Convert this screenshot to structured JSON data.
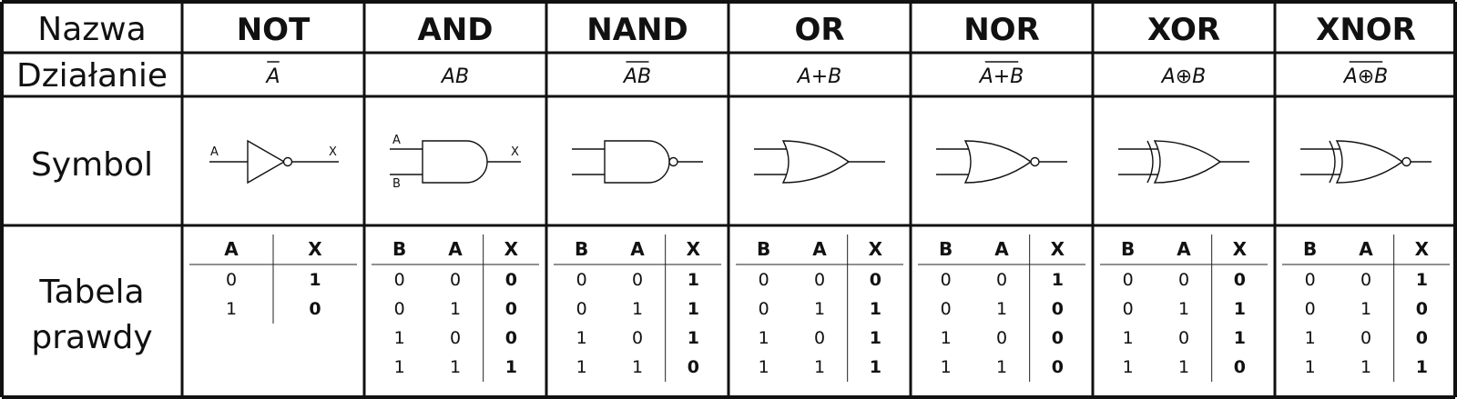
{
  "row_labels": {
    "name": "Nazwa",
    "operation": "Działanie",
    "symbol": "Symbol",
    "truth_table_line1": "Tabela",
    "truth_table_line2": "prawdy"
  },
  "gates": [
    {
      "name": "NOT",
      "operation": "A",
      "operation_overline": true,
      "symbol_icon": "not-gate-icon",
      "pin_labels": {
        "a": "A",
        "x": "X"
      },
      "columns": [
        "A",
        "X"
      ],
      "rows": [
        [
          "0",
          "1"
        ],
        [
          "1",
          "0"
        ]
      ]
    },
    {
      "name": "AND",
      "operation": "AB",
      "operation_overline": false,
      "symbol_icon": "and-gate-icon",
      "pin_labels": {
        "a": "A",
        "b": "B",
        "x": "X"
      },
      "columns": [
        "B",
        "A",
        "X"
      ],
      "rows": [
        [
          "0",
          "0",
          "0"
        ],
        [
          "0",
          "1",
          "0"
        ],
        [
          "1",
          "0",
          "0"
        ],
        [
          "1",
          "1",
          "1"
        ]
      ]
    },
    {
      "name": "NAND",
      "operation": "AB",
      "operation_overline": true,
      "symbol_icon": "nand-gate-icon",
      "columns": [
        "B",
        "A",
        "X"
      ],
      "rows": [
        [
          "0",
          "0",
          "1"
        ],
        [
          "0",
          "1",
          "1"
        ],
        [
          "1",
          "0",
          "1"
        ],
        [
          "1",
          "1",
          "0"
        ]
      ]
    },
    {
      "name": "OR",
      "operation": "A+B",
      "operation_overline": false,
      "symbol_icon": "or-gate-icon",
      "columns": [
        "B",
        "A",
        "X"
      ],
      "rows": [
        [
          "0",
          "0",
          "0"
        ],
        [
          "0",
          "1",
          "1"
        ],
        [
          "1",
          "0",
          "1"
        ],
        [
          "1",
          "1",
          "1"
        ]
      ]
    },
    {
      "name": "NOR",
      "operation": "A+B",
      "operation_overline": true,
      "symbol_icon": "nor-gate-icon",
      "columns": [
        "B",
        "A",
        "X"
      ],
      "rows": [
        [
          "0",
          "0",
          "1"
        ],
        [
          "0",
          "1",
          "0"
        ],
        [
          "1",
          "0",
          "0"
        ],
        [
          "1",
          "1",
          "0"
        ]
      ]
    },
    {
      "name": "XOR",
      "operation": "A⊕B",
      "operation_overline": false,
      "symbol_icon": "xor-gate-icon",
      "columns": [
        "B",
        "A",
        "X"
      ],
      "rows": [
        [
          "0",
          "0",
          "0"
        ],
        [
          "0",
          "1",
          "1"
        ],
        [
          "1",
          "0",
          "1"
        ],
        [
          "1",
          "1",
          "0"
        ]
      ]
    },
    {
      "name": "XNOR",
      "operation": "A⊕B",
      "operation_overline": true,
      "symbol_icon": "xnor-gate-icon",
      "columns": [
        "B",
        "A",
        "X"
      ],
      "rows": [
        [
          "0",
          "0",
          "1"
        ],
        [
          "0",
          "1",
          "0"
        ],
        [
          "1",
          "0",
          "0"
        ],
        [
          "1",
          "1",
          "1"
        ]
      ]
    }
  ]
}
